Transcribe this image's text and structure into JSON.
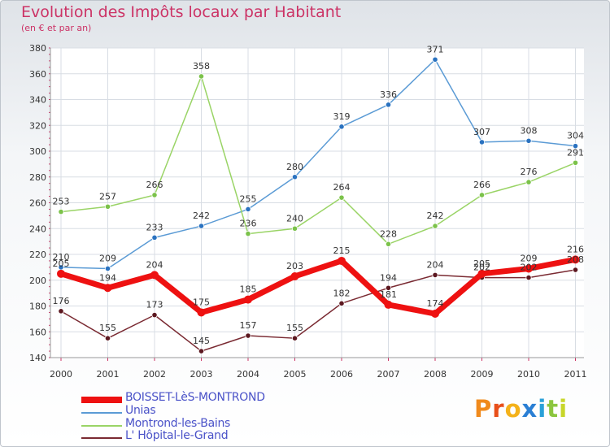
{
  "header": {
    "title": "Evolution des Impôts locaux par Habitant",
    "subtitle": "(en € et par an)"
  },
  "brand": {
    "letters": [
      "P",
      "r",
      "o",
      "x",
      "i",
      "t",
      "i"
    ],
    "colors": [
      "#f08a1c",
      "#e84f1a",
      "#f4b21a",
      "#2a7fd4",
      "#2aa0d8",
      "#8cc63f",
      "#c8d62a"
    ]
  },
  "chart_data": {
    "type": "line",
    "title": "Evolution des Impôts locaux par Habitant",
    "subtitle": "(en € et par an)",
    "xlabel": "",
    "ylabel": "",
    "x": [
      "2000",
      "2001",
      "2002",
      "2003",
      "2004",
      "2005",
      "2006",
      "2007",
      "2008",
      "2009",
      "2010",
      "2011"
    ],
    "ylim": [
      140,
      380
    ],
    "yticks": [
      "140",
      "160",
      "180",
      "200",
      "220",
      "240",
      "260",
      "280",
      "300",
      "320",
      "340",
      "360",
      "380"
    ],
    "grid": true,
    "legend_position": "bottom-left",
    "series": [
      {
        "name": "BOISSET-LèS-MONTROND",
        "color": "#ee1111",
        "marker": "#ee1111",
        "values": [
          205,
          194,
          204,
          175,
          185,
          203,
          215,
          181,
          174,
          205,
          209,
          216
        ],
        "labels": [
          "205",
          "194",
          "204",
          "175",
          "185",
          "203",
          "215",
          "181",
          "174",
          "205",
          "209",
          "216"
        ]
      },
      {
        "name": "Unias",
        "color": "#5b9bd5",
        "marker": "#2a72c0",
        "values": [
          210,
          209,
          233,
          242,
          255,
          280,
          319,
          336,
          371,
          307,
          308,
          304
        ],
        "labels": [
          "210",
          "209",
          "233",
          "242",
          "255",
          "280",
          "319",
          "336",
          "371",
          "307",
          "308",
          "304"
        ]
      },
      {
        "name": "Montrond-les-Bains",
        "color": "#9ad466",
        "marker": "#7bc24a",
        "values": [
          253,
          257,
          266,
          358,
          236,
          240,
          264,
          228,
          242,
          266,
          276,
          291
        ],
        "labels": [
          "253",
          "257",
          "266",
          "358",
          "236",
          "240",
          "264",
          "228",
          "242",
          "266",
          "276",
          "291"
        ]
      },
      {
        "name": "L' Hôpital-le-Grand",
        "color": "#7a2a32",
        "marker": "#5c1820",
        "values": [
          176,
          155,
          173,
          145,
          157,
          155,
          182,
          194,
          204,
          202,
          202,
          208
        ],
        "labels": [
          "176",
          "155",
          "173",
          "145",
          "157",
          "155",
          "182",
          "194",
          "204",
          "202",
          "202",
          "208"
        ]
      }
    ]
  }
}
